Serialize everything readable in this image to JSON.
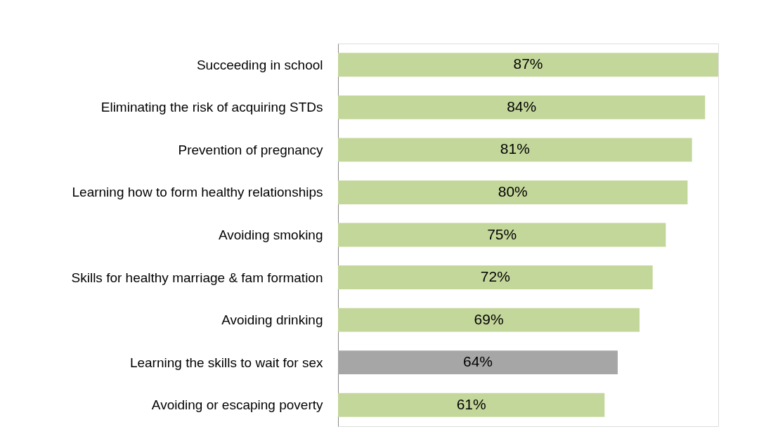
{
  "chart_data": {
    "type": "bar",
    "orientation": "horizontal",
    "categories": [
      "Succeeding in school",
      "Eliminating the risk of acquiring STDs",
      "Prevention of pregnancy",
      "Learning how to form healthy relationships",
      "Avoiding smoking",
      "Skills for healthy marriage & fam formation",
      "Avoiding drinking",
      "Learning the skills to wait for sex",
      "Avoiding or escaping poverty"
    ],
    "values": [
      87,
      84,
      81,
      80,
      75,
      72,
      69,
      64,
      61
    ],
    "colors": [
      "#c4d79b",
      "#c4d79b",
      "#c4d79b",
      "#c4d79b",
      "#c4d79b",
      "#c4d79b",
      "#c4d79b",
      "#a6a6a6",
      "#c4d79b"
    ],
    "value_labels": [
      "87%",
      "84%",
      "81%",
      "80%",
      "75%",
      "72%",
      "69%",
      "64%",
      "61%"
    ]
  }
}
